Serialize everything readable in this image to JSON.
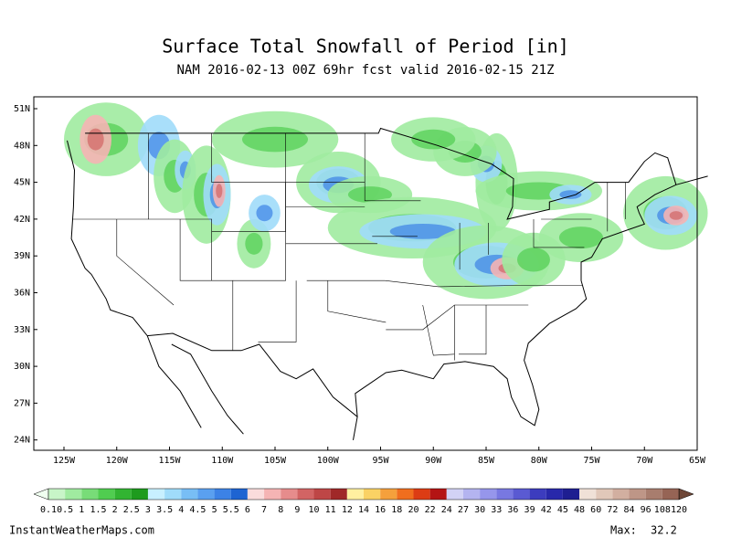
{
  "header": {
    "title": "Surface Total Snowfall of Period [in]",
    "subtitle": "NAM 2016-02-13 00Z 69hr fcst valid 2016-02-15 21Z"
  },
  "map": {
    "lat_labels": [
      "51N",
      "48N",
      "45N",
      "42N",
      "39N",
      "36N",
      "33N",
      "30N",
      "27N",
      "24N"
    ],
    "lon_labels": [
      "125W",
      "120W",
      "115W",
      "110W",
      "105W",
      "100W",
      "95W",
      "90W",
      "85W",
      "80W",
      "75W",
      "70W",
      "65W"
    ]
  },
  "colorbar": {
    "labels": [
      0.1,
      0.5,
      1,
      1.5,
      2,
      2.5,
      3,
      3.5,
      4,
      4.5,
      5,
      5.5,
      6,
      7,
      8,
      9,
      10,
      11,
      12,
      14,
      16,
      18,
      20,
      22,
      24,
      27,
      30,
      33,
      36,
      39,
      42,
      45,
      48,
      60,
      72,
      84,
      96,
      108,
      120
    ],
    "colors": [
      "#f0fff0",
      "#c8f5c8",
      "#a0eba0",
      "#78dc78",
      "#50cd50",
      "#32b432",
      "#1e9b1e",
      "#c8f0ff",
      "#a0dcfa",
      "#78bef5",
      "#5aa0f0",
      "#3c82e6",
      "#1e64d2",
      "#fadcdc",
      "#f5b4b4",
      "#e68c8c",
      "#d26464",
      "#be4646",
      "#a02828",
      "#fff0a0",
      "#fad264",
      "#f5a03c",
      "#f06e1e",
      "#dc3c14",
      "#b41414",
      "#d2d2f5",
      "#b4b4f0",
      "#9696eb",
      "#7878e1",
      "#5a5ad2",
      "#3c3cbe",
      "#2828aa",
      "#1e1e91",
      "#f0e1d7",
      "#e1c8b9",
      "#d2afa0",
      "#be9687",
      "#a87d6e",
      "#966455",
      "#6e4637"
    ]
  },
  "footer": {
    "site": "InstantWeatherMaps.com",
    "max_label": "Max:",
    "max_value": "32.2"
  }
}
